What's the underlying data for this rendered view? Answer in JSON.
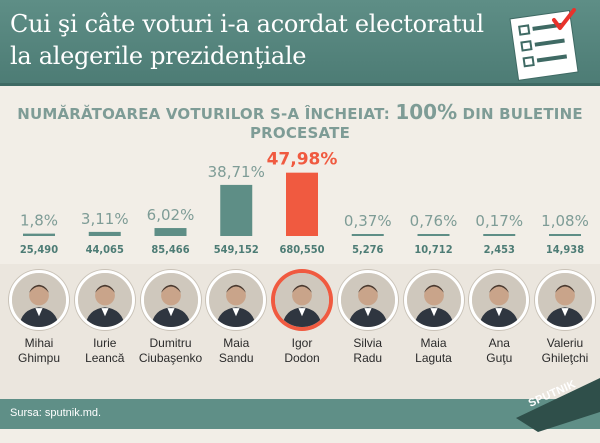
{
  "header": {
    "title_line1": "Cui şi câte voturi i-a acordat electoratul",
    "title_line2": "la alegerile prezidenţiale"
  },
  "subtitle": {
    "prefix": "NUMĂRĂTOAREA VOTURILOR S-A ÎNCHEIAT: ",
    "big": "100%",
    "suffix": " DIN BULETINE PROCESATE"
  },
  "icons": [
    "ballot-checklist-icon",
    "candidate-portrait-icon",
    "sputnik-logo"
  ],
  "colors": {
    "bar": "#5e8e86",
    "bar_winner": "#f05a40",
    "value": "#7e9c96",
    "votes": "#4d7c75",
    "header": "#4d7c75"
  },
  "chart_data": {
    "type": "bar",
    "categories": [
      "Mihai Ghimpu",
      "Iurie Leancă",
      "Dumitru Ciubaşenko",
      "Maia Sandu",
      "Igor Dodon",
      "Silvia Radu",
      "Maia Laguta",
      "Ana Guţu",
      "Valeriu Ghileţchi"
    ],
    "values": [
      1.8,
      3.11,
      6.02,
      38.71,
      47.98,
      0.37,
      0.76,
      0.17,
      1.08
    ],
    "value_labels": [
      "1,8%",
      "3,11%",
      "6,02%",
      "38,71%",
      "47,98%",
      "0,37%",
      "0,76%",
      "0,17%",
      "1,08%"
    ],
    "votes": [
      25490,
      44065,
      85466,
      549152,
      680550,
      5276,
      10712,
      2453,
      14938
    ],
    "vote_labels": [
      "25,490",
      "44,065",
      "85,466",
      "549,152",
      "680,550",
      "5,276",
      "10,712",
      "2,453",
      "14,938"
    ],
    "highlight_index": 4,
    "ylim": [
      0,
      50
    ],
    "title": "",
    "xlabel": "",
    "ylabel": "",
    "grid": false
  },
  "candidates": [
    {
      "line1": "Mihai",
      "line2": "Ghimpu"
    },
    {
      "line1": "Iurie",
      "line2": "Leancă"
    },
    {
      "line1": "Dumitru",
      "line2": "Ciubaşenko"
    },
    {
      "line1": "Maia",
      "line2": "Sandu"
    },
    {
      "line1": "Igor",
      "line2": "Dodon"
    },
    {
      "line1": "Silvia",
      "line2": "Radu"
    },
    {
      "line1": "Maia",
      "line2": "Laguta"
    },
    {
      "line1": "Ana",
      "line2": "Guţu"
    },
    {
      "line1": "Valeriu",
      "line2": "Ghileţchi"
    }
  ],
  "footer": {
    "source": "Sursa: sputnik.md.",
    "logo": "SPUTNIK"
  }
}
